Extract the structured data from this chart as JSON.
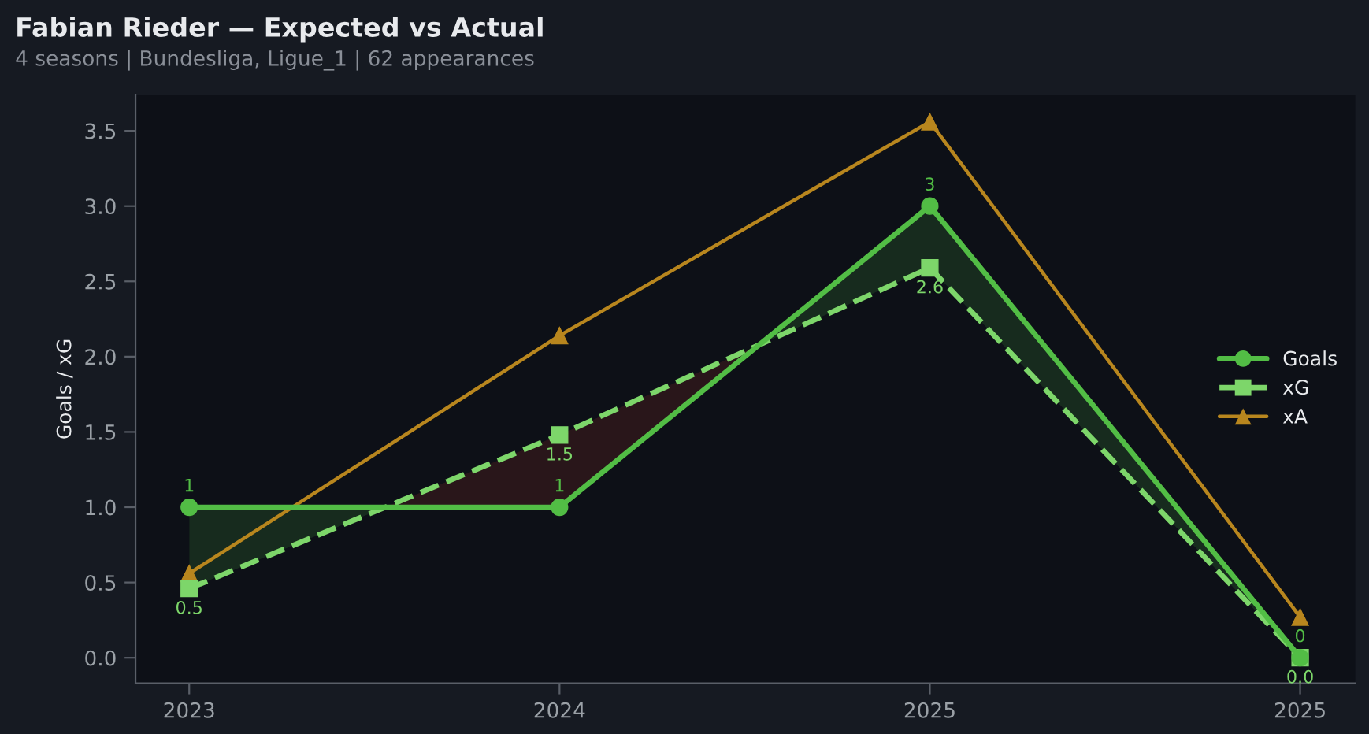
{
  "chart_data": {
    "type": "line",
    "title": "Fabian Rieder — Expected vs Actual",
    "subtitle": "4 seasons | Bundesliga, Ligue_1 | 62 appearances",
    "ylabel": "Goals / xG",
    "categories": [
      "2023",
      "2024",
      "2025",
      "2025"
    ],
    "series": [
      {
        "name": "Goals",
        "color": "#52bd45",
        "values": [
          1,
          1,
          3,
          0
        ],
        "value_labels": [
          "1",
          "1",
          "3",
          "0"
        ],
        "marker": "circle",
        "line_style": "solid",
        "lower": [
          0.46,
          1.48,
          2.59,
          0.0
        ],
        "upper": [
          1,
          1,
          3,
          0
        ]
      },
      {
        "name": "xG",
        "color": "#7dd66a",
        "values": [
          0.46,
          1.48,
          2.59,
          0.0
        ],
        "value_labels": [
          "0.5",
          "1.5",
          "2.6",
          "0.0"
        ],
        "marker": "square",
        "line_style": "dashed"
      },
      {
        "name": "xA",
        "color": "#b8861e",
        "values": [
          0.56,
          2.14,
          3.56,
          0.27
        ],
        "marker": "triangle",
        "line_style": "solid"
      }
    ],
    "ylim": [
      -0.17,
      3.74
    ],
    "yticks": [
      {
        "value": 0,
        "label": "0.0"
      },
      0.5,
      {
        "value": 1,
        "label": "1.0"
      },
      1.5,
      {
        "value": 2,
        "label": "2.0"
      },
      2.5,
      {
        "value": 3,
        "label": "3.0"
      },
      3.5
    ],
    "grid": false,
    "legend": "right"
  }
}
